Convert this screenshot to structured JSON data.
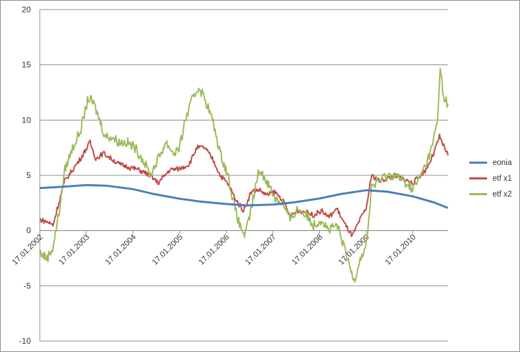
{
  "chart_data": {
    "type": "line",
    "title": "",
    "xlabel": "",
    "ylabel": "",
    "ylim": [
      -10,
      20
    ],
    "yticks": [
      -10,
      -5,
      0,
      5,
      10,
      15,
      20
    ],
    "xlim": [
      "2002-01-17",
      "2010-10-20"
    ],
    "xtick_labels": [
      "17.01.2002",
      "17.01.2003",
      "17.01.2004",
      "17.01.2005",
      "17.01.2006",
      "17.01.2007",
      "17.01.2008",
      "17.01.2009",
      "17.01.2010"
    ],
    "grid": "horizontal",
    "legend_position": "right",
    "series": [
      {
        "name": "eonia",
        "color": "#4a7ebb",
        "x": [
          "2002-01-17",
          "2002-07-01",
          "2003-01-17",
          "2003-07-01",
          "2004-01-17",
          "2004-07-01",
          "2005-01-17",
          "2005-07-01",
          "2006-01-17",
          "2006-07-01",
          "2007-01-17",
          "2007-07-01",
          "2008-01-17",
          "2008-07-01",
          "2009-01-17",
          "2009-07-01",
          "2010-01-17",
          "2010-07-01",
          "2010-10-20"
        ],
        "y": [
          3.85,
          3.95,
          4.12,
          4.05,
          3.75,
          3.3,
          2.88,
          2.62,
          2.4,
          2.28,
          2.35,
          2.55,
          2.9,
          3.3,
          3.65,
          3.52,
          3.1,
          2.55,
          2.05
        ]
      },
      {
        "name": "etf x1",
        "color": "#be4b48",
        "x": [
          "2002-01-17",
          "2002-03-15",
          "2002-05-01",
          "2002-06-15",
          "2002-08-01",
          "2002-10-01",
          "2002-12-01",
          "2003-02-15",
          "2003-04-01",
          "2003-06-01",
          "2003-08-01",
          "2003-10-01",
          "2003-12-01",
          "2004-03-01",
          "2004-06-01",
          "2004-08-01",
          "2004-11-01",
          "2005-01-17",
          "2005-04-01",
          "2005-06-01",
          "2005-08-01",
          "2005-10-01",
          "2005-12-01",
          "2006-02-01",
          "2006-04-01",
          "2006-06-01",
          "2006-08-01",
          "2006-10-01",
          "2006-12-01",
          "2007-02-01",
          "2007-04-01",
          "2007-06-01",
          "2007-08-01",
          "2007-10-01",
          "2007-12-01",
          "2008-02-01",
          "2008-04-01",
          "2008-06-01",
          "2008-08-01",
          "2008-10-01",
          "2008-12-01",
          "2009-01-17",
          "2009-03-01",
          "2009-05-01",
          "2009-07-01",
          "2009-09-01",
          "2009-11-01",
          "2010-01-17",
          "2010-03-01",
          "2010-05-01",
          "2010-07-01",
          "2010-08-15",
          "2010-10-20"
        ],
        "y": [
          1.0,
          0.8,
          0.5,
          2.5,
          4.5,
          5.5,
          6.5,
          8.0,
          6.5,
          7.0,
          6.5,
          6.0,
          5.8,
          5.5,
          5.0,
          4.3,
          5.5,
          5.6,
          6.0,
          7.5,
          7.5,
          6.5,
          5.0,
          4.2,
          2.8,
          1.8,
          3.5,
          3.7,
          3.2,
          3.5,
          2.8,
          1.3,
          1.8,
          1.7,
          1.4,
          1.8,
          1.2,
          2.0,
          0.6,
          -0.5,
          1.0,
          2.0,
          5.0,
          4.5,
          4.7,
          5.0,
          4.7,
          4.3,
          4.8,
          5.5,
          7.0,
          8.5,
          6.8
        ]
      },
      {
        "name": "etf x2",
        "color": "#9bbb59",
        "x": [
          "2002-01-17",
          "2002-03-15",
          "2002-05-01",
          "2002-06-15",
          "2002-08-01",
          "2002-10-01",
          "2002-12-01",
          "2003-02-01",
          "2003-03-15",
          "2003-05-01",
          "2003-06-15",
          "2003-08-01",
          "2003-10-01",
          "2003-12-01",
          "2004-02-01",
          "2004-04-01",
          "2004-06-01",
          "2004-08-01",
          "2004-10-01",
          "2004-12-01",
          "2005-01-17",
          "2005-03-01",
          "2005-05-01",
          "2005-06-15",
          "2005-08-01",
          "2005-10-01",
          "2005-12-01",
          "2006-02-01",
          "2006-03-15",
          "2006-05-01",
          "2006-06-15",
          "2006-08-01",
          "2006-10-01",
          "2006-12-01",
          "2007-02-01",
          "2007-04-01",
          "2007-06-01",
          "2007-08-01",
          "2007-10-01",
          "2007-12-01",
          "2008-02-01",
          "2008-04-01",
          "2008-06-01",
          "2008-07-15",
          "2008-09-01",
          "2008-10-15",
          "2008-12-01",
          "2009-01-17",
          "2009-03-01",
          "2009-05-01",
          "2009-07-01",
          "2009-09-01",
          "2009-11-01",
          "2010-01-17",
          "2010-03-01",
          "2010-05-01",
          "2010-06-15",
          "2010-08-01",
          "2010-08-20",
          "2010-09-15",
          "2010-10-20"
        ],
        "y": [
          -2.0,
          -2.5,
          -1.5,
          1.5,
          5.5,
          7.5,
          9.0,
          12.0,
          11.5,
          10.0,
          8.5,
          8.5,
          8.0,
          8.0,
          7.5,
          6.5,
          5.0,
          6.5,
          8.0,
          7.0,
          7.5,
          10.0,
          12.0,
          13.0,
          12.0,
          10.0,
          7.0,
          5.0,
          2.5,
          0.5,
          -0.5,
          2.0,
          5.5,
          4.5,
          3.0,
          2.5,
          1.0,
          2.0,
          1.5,
          0.5,
          1.0,
          0.0,
          0.5,
          -1.0,
          -3.0,
          -4.5,
          -2.5,
          -1.5,
          4.0,
          4.5,
          5.0,
          5.0,
          4.5,
          3.8,
          4.5,
          6.0,
          7.5,
          10.0,
          15.0,
          12.0,
          11.5
        ]
      }
    ]
  }
}
